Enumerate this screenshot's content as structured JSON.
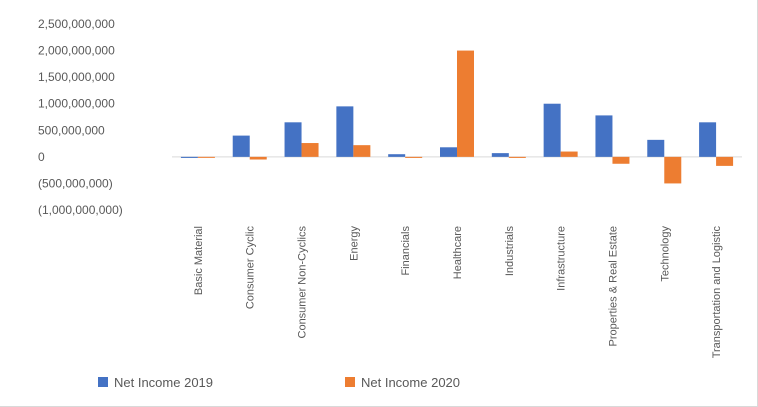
{
  "chart_data": {
    "type": "bar",
    "title": "",
    "xlabel": "",
    "ylabel": "",
    "ylim": [
      -1000000000,
      2500000000
    ],
    "y_ticks": [
      "2,500,000,000",
      "2,000,000,000",
      "1,500,000,000",
      "1,000,000,000",
      "500,000,000",
      "0",
      "(500,000,000)",
      "(1,000,000,000)"
    ],
    "y_tick_values": [
      2500000000,
      2000000000,
      1500000000,
      1000000000,
      500000000,
      0,
      -500000000,
      -1000000000
    ],
    "categories": [
      "Basic Material",
      "Consumer Cyclic",
      "Consumer Non-Cyclics",
      "Energy",
      "Financials",
      "Healthcare",
      "Industrials",
      "Infrastructure",
      "Properties & Real Estate",
      "Technology",
      "Transportation and Logistic"
    ],
    "series": [
      {
        "name": "Net Income 2019",
        "color": "#4472C4",
        "values": [
          -20000000,
          400000000,
          650000000,
          950000000,
          50000000,
          180000000,
          70000000,
          1000000000,
          780000000,
          320000000,
          650000000
        ]
      },
      {
        "name": "Net Income 2020",
        "color": "#ED7D31",
        "values": [
          -10000000,
          -50000000,
          260000000,
          220000000,
          -20000000,
          2000000000,
          -20000000,
          100000000,
          -130000000,
          -500000000,
          -170000000
        ]
      }
    ],
    "grid": false,
    "legend_position": "bottom"
  }
}
